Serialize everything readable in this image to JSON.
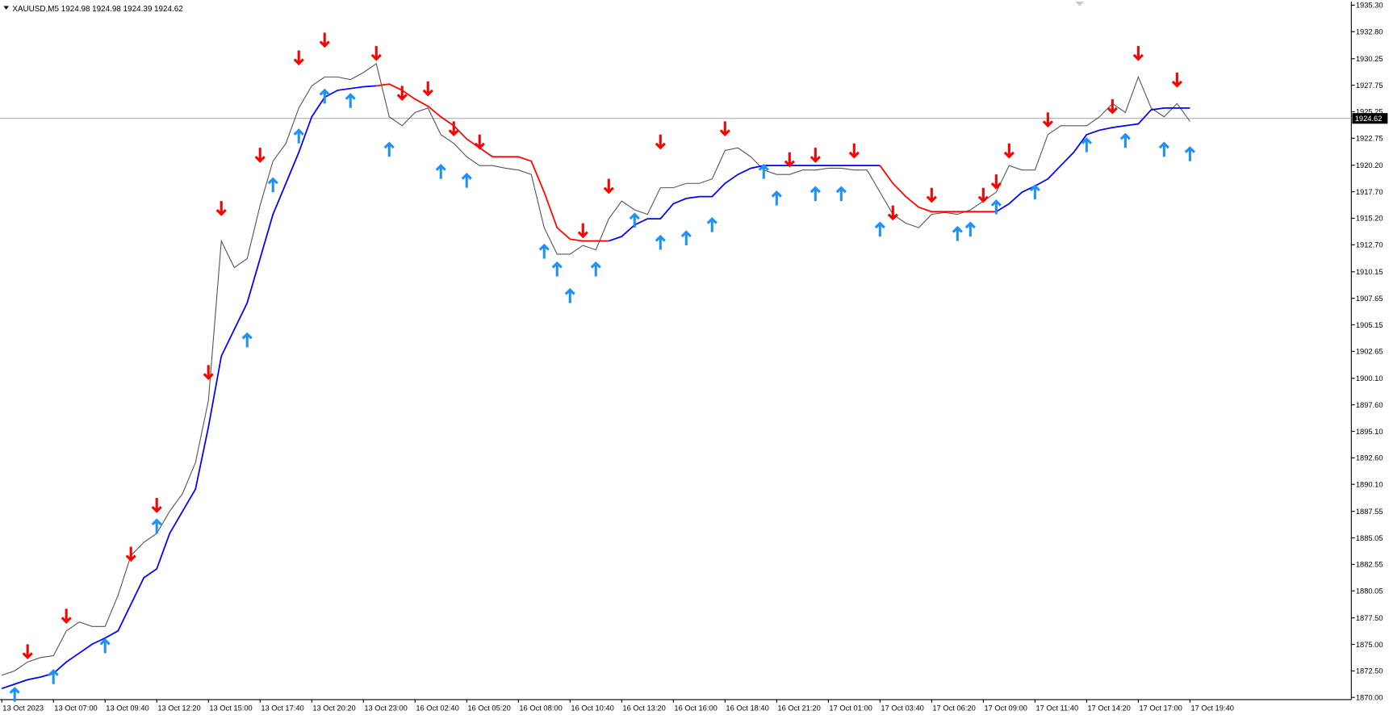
{
  "chart_data": {
    "type": "line",
    "title": "XAUUSD,M5  1924.98 1924.98 1924.39 1924.62",
    "current_price": 1924.62,
    "categories": [
      "13 Oct 2023",
      null,
      null,
      null,
      "13 Oct 07:00",
      null,
      null,
      null,
      "13 Oct 09:40",
      null,
      null,
      null,
      "13 Oct 12:20",
      null,
      null,
      null,
      "13 Oct 15:00",
      null,
      null,
      null,
      "13 Oct 17:40",
      null,
      null,
      null,
      "13 Oct 20:20",
      null,
      null,
      null,
      "13 Oct 23:00",
      null,
      null,
      null,
      "16 Oct 02:40",
      null,
      null,
      null,
      "16 Oct 05:20",
      null,
      null,
      null,
      "16 Oct 08:00",
      null,
      null,
      null,
      "16 Oct 10:40",
      null,
      null,
      null,
      "16 Oct 13:20",
      null,
      null,
      null,
      "16 Oct 16:00",
      null,
      null,
      null,
      "16 Oct 18:40",
      null,
      null,
      null,
      "16 Oct 21:20",
      null,
      null,
      null,
      "17 Oct 01:00",
      null,
      null,
      null,
      "17 Oct 03:40",
      null,
      null,
      null,
      "17 Oct 06:20",
      null,
      null,
      null,
      "17 Oct 09:00",
      null,
      null,
      null,
      "17 Oct 11:40",
      null,
      null,
      null,
      "17 Oct 14:20",
      null,
      null,
      null,
      "17 Oct 17:00",
      null,
      null,
      null,
      "17 Oct 19:40"
    ],
    "series": [
      {
        "color": "#555555",
        "values": [
          1872.09,
          1872.51,
          1873.34,
          1873.76,
          1873.93,
          1876.27,
          1877.11,
          1876.69,
          1876.69,
          1879.62,
          1883.38,
          1884.63,
          1885.47,
          1887.56,
          1889.23,
          1892.16,
          1898.01,
          1913.06,
          1910.55,
          1911.39,
          1916.4,
          1920.59,
          1922.26,
          1925.6,
          1927.69,
          1928.53,
          1928.53,
          1928.28,
          1928.95,
          1929.78,
          1924.77,
          1923.93,
          1925.18,
          1925.6,
          1923.09,
          1922.26,
          1921,
          1920.17,
          1920.17,
          1919.92,
          1919.75,
          1919.33,
          1914.31,
          1911.81,
          1911.81,
          1912.64,
          1912.22,
          1915.15,
          1916.82,
          1915.99,
          1915.57,
          1918.08,
          1918.08,
          1918.49,
          1918.49,
          1918.91,
          1921.59,
          1921.84,
          1921,
          1919.75,
          1919.33,
          1919.33,
          1919.75,
          1919.75,
          1919.92,
          1919.92,
          1919.75,
          1919.75,
          1917.66,
          1915.57,
          1914.73,
          1914.31,
          1915.57,
          1915.74,
          1915.57,
          1915.99,
          1916.82,
          1917.66,
          1920.17,
          1919.75,
          1919.75,
          1923.09,
          1923.93,
          1923.93,
          1923.93,
          1924.77,
          1926.02,
          1925.18,
          1928.53,
          1925.6,
          1924.77,
          1926.02,
          1924.35
        ]
      },
      {
        "color": "#0000ff",
        "values": [
          1870.84,
          1871.25,
          1871.67,
          1871.92,
          1872.26,
          1873.34,
          1874.18,
          1875.02,
          1875.6,
          1876.27,
          1878.78,
          1881.29,
          1882.12,
          1885.47,
          1887.56,
          1889.65,
          1895.5,
          1902.19,
          1904.7,
          1907.21,
          1911.39,
          1915.57,
          1918.49,
          1921.42,
          1924.77,
          1926.61,
          1927.27,
          1927.44,
          1927.61,
          1927.69,
          null,
          null,
          null,
          null,
          null,
          null,
          null,
          null,
          null,
          null,
          null,
          null,
          null,
          null,
          null,
          null,
          null,
          1913.06,
          1913.48,
          1914.57,
          1915.15,
          1915.15,
          1916.57,
          1917.07,
          1917.24,
          1917.24,
          1918.49,
          1919.33,
          1919.92,
          1920.17,
          1920.17,
          1920.17,
          1920.17,
          1920.17,
          1920.17,
          1920.17,
          1920.17,
          1920.17,
          1920.17,
          null,
          null,
          null,
          null,
          null,
          null,
          null,
          null,
          1915.82,
          1916.57,
          1917.66,
          1918.24,
          1918.91,
          1920.17,
          1921.42,
          1923.09,
          1923.51,
          1923.76,
          1923.93,
          1924.1,
          1925.43,
          1925.6,
          1925.6,
          1925.6
        ]
      },
      {
        "color": "#ff0000",
        "values": [
          null,
          null,
          null,
          null,
          null,
          null,
          null,
          null,
          null,
          null,
          null,
          null,
          null,
          null,
          null,
          null,
          null,
          null,
          null,
          null,
          null,
          null,
          null,
          null,
          null,
          null,
          null,
          null,
          null,
          1927.69,
          1927.86,
          1927.27,
          1926.44,
          1925.77,
          1924.77,
          1923.93,
          1922.68,
          1921.84,
          1921,
          1921,
          1921,
          1920.59,
          1917.66,
          1914.31,
          1913.23,
          1913.06,
          1913.06,
          1913.06,
          null,
          null,
          null,
          null,
          null,
          null,
          null,
          null,
          null,
          null,
          null,
          null,
          null,
          null,
          null,
          null,
          null,
          null,
          null,
          null,
          1920.17,
          1918.49,
          1917.24,
          1916.24,
          1915.82,
          1915.82,
          1915.82,
          1915.82,
          1915.82,
          1915.82,
          null,
          null,
          null,
          null,
          null,
          null,
          null,
          null,
          null,
          null,
          null,
          null,
          null,
          null,
          null
        ]
      }
    ],
    "sell_signals": {
      "color": "#ff0000",
      "values": [
        null,
        null,
        1873.76,
        null,
        null,
        1877.11,
        null,
        null,
        null,
        null,
        1882.96,
        null,
        1887.56,
        null,
        null,
        null,
        1900.1,
        1915.57,
        null,
        null,
        1920.59,
        null,
        null,
        1929.78,
        null,
        1931.45,
        null,
        null,
        null,
        1930.2,
        null,
        1926.44,
        null,
        1926.86,
        null,
        1923.09,
        null,
        1921.84,
        null,
        null,
        null,
        null,
        null,
        null,
        null,
        1913.48,
        null,
        1917.66,
        null,
        null,
        null,
        1921.84,
        null,
        null,
        null,
        null,
        1923.09,
        null,
        null,
        null,
        null,
        1920.17,
        null,
        1920.59,
        null,
        null,
        1921,
        null,
        null,
        1915.15,
        null,
        null,
        1916.82,
        null,
        null,
        null,
        1916.82,
        1918.08,
        1921,
        null,
        null,
        1923.93,
        null,
        null,
        null,
        null,
        1925.18,
        null,
        1930.2,
        null,
        null,
        1927.69,
        null
      ]
    },
    "buy_signals": {
      "color": "#1e90ff",
      "values": [
        null,
        1870.84,
        null,
        null,
        1872.51,
        null,
        null,
        null,
        1875.43,
        null,
        null,
        null,
        1886.72,
        null,
        null,
        null,
        null,
        null,
        null,
        1904.28,
        null,
        1918.91,
        null,
        1923.51,
        null,
        1927.27,
        null,
        1926.86,
        null,
        null,
        1922.26,
        null,
        null,
        null,
        1920.17,
        null,
        1919.33,
        null,
        null,
        null,
        null,
        null,
        1912.64,
        1910.97,
        1908.46,
        null,
        1910.97,
        null,
        null,
        1915.57,
        null,
        1913.48,
        null,
        1913.9,
        null,
        1915.15,
        null,
        null,
        null,
        1920.17,
        1917.66,
        null,
        null,
        1918.08,
        null,
        1918.08,
        null,
        null,
        1914.73,
        null,
        null,
        null,
        null,
        null,
        1914.31,
        1914.73,
        null,
        1916.82,
        null,
        null,
        1918.24,
        null,
        null,
        null,
        1922.68,
        null,
        null,
        1923.09,
        null,
        null,
        1922.26,
        null,
        1921.84
      ]
    },
    "ylim": [
      1870,
      1935.3
    ],
    "yticks": [
      {
        "value": 1870,
        "label": "1870.00"
      },
      {
        "value": 1872.5,
        "label": "1872.50"
      },
      {
        "value": 1875,
        "label": "1875.00"
      },
      {
        "value": 1877.5,
        "label": "1877.50"
      },
      1880.05,
      1882.55,
      1885.05,
      1887.55,
      {
        "value": 1890.1,
        "label": "1890.10"
      },
      {
        "value": 1892.6,
        "label": "1892.60"
      },
      {
        "value": 1895.1,
        "label": "1895.10"
      },
      {
        "value": 1897.6,
        "label": "1897.60"
      },
      {
        "value": 1900.1,
        "label": "1900.10"
      },
      1902.65,
      1905.15,
      1907.65,
      1910.15,
      {
        "value": 1912.7,
        "label": "1912.70"
      },
      {
        "value": 1915.2,
        "label": "1915.20"
      },
      {
        "value": 1917.7,
        "label": "1917.70"
      },
      {
        "value": 1920.2,
        "label": "1920.20"
      },
      1922.75,
      1925.25,
      1927.75,
      1930.25,
      {
        "value": 1932.8,
        "label": "1932.80"
      },
      {
        "value": 1935.3,
        "label": "1935.30"
      }
    ],
    "grid": false
  }
}
